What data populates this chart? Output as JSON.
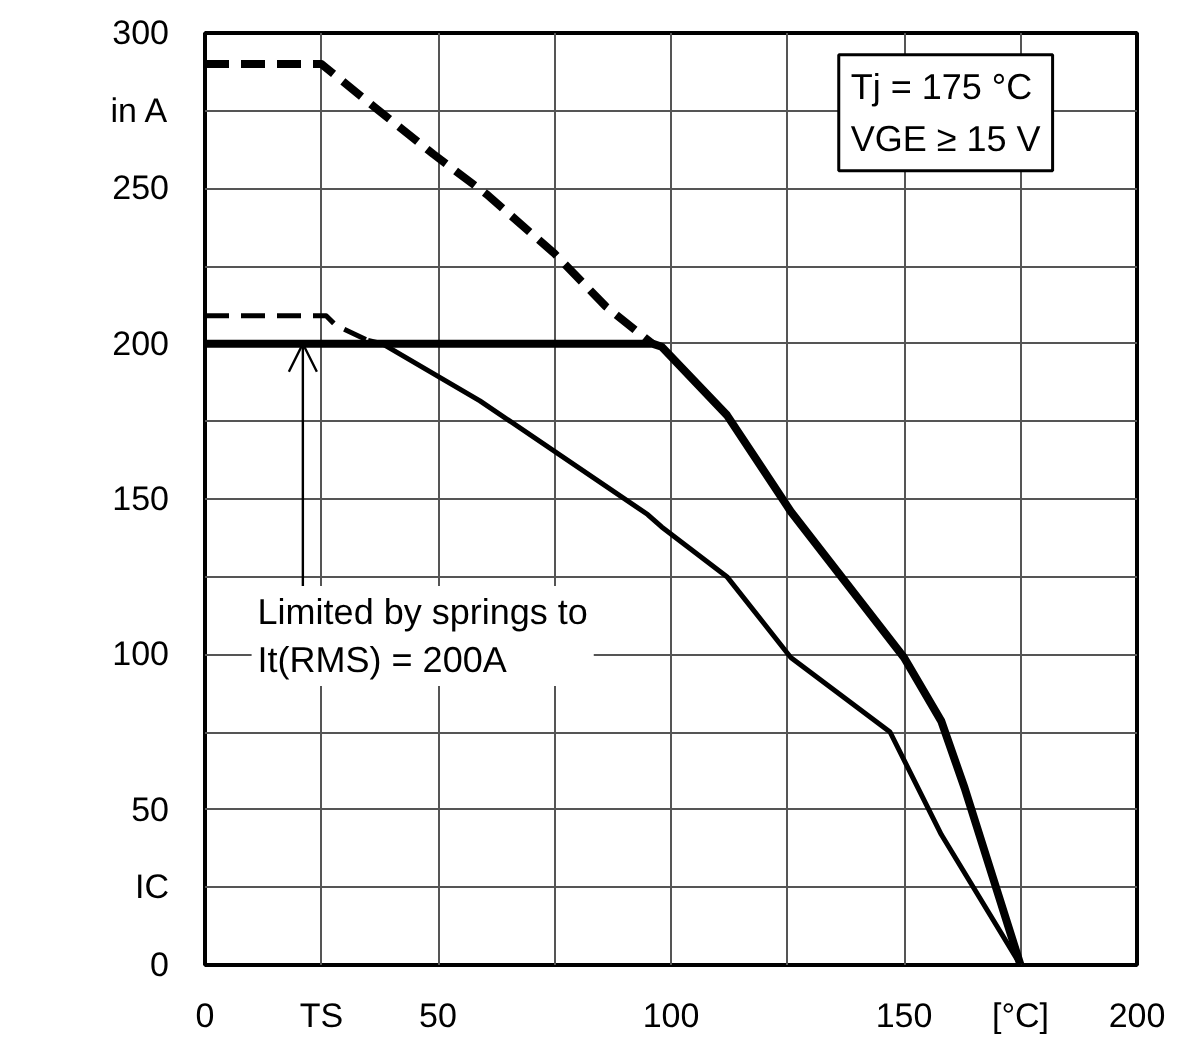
{
  "chart_data": {
    "type": "line",
    "xlim": [
      0,
      200
    ],
    "ylim": [
      0,
      300
    ],
    "xticks": [
      0,
      {
        "value": 25,
        "label": "TS"
      },
      50,
      {
        "value": 75,
        "label": null
      },
      100,
      {
        "value": 125,
        "label": null
      },
      150,
      {
        "value": 175,
        "label": "[°C]"
      },
      200
    ],
    "yticks": [
      0,
      {
        "value": 25,
        "label": "IC"
      },
      50,
      {
        "value": 75,
        "label": null
      },
      100,
      {
        "value": 125,
        "label": null
      },
      150,
      {
        "value": 175,
        "label": null
      },
      200,
      {
        "value": 225,
        "label": null
      },
      250,
      {
        "value": 275,
        "label": "in A"
      },
      300
    ],
    "grid": true,
    "series": [
      {
        "color": "#000000",
        "line_style": "dashed",
        "x": [
          0,
          25,
          36.5,
          49,
          60.5,
          75,
          86,
          96
        ],
        "values": [
          290,
          290,
          276,
          261,
          248,
          229,
          212,
          200
        ]
      },
      {
        "color": "#000000",
        "line_style": "solid",
        "x": [
          0,
          96,
          98,
          112,
          125.7,
          150,
          158,
          163,
          175
        ],
        "values": [
          200,
          200,
          199,
          177,
          146,
          99,
          78.5,
          57,
          0
        ]
      },
      {
        "color": "#000000",
        "line_style": "dashed",
        "x": [
          0,
          26,
          28,
          35
        ],
        "values": [
          209,
          209,
          206,
          201
        ]
      },
      {
        "color": "#000000",
        "line_style": "solid",
        "x": [
          35,
          38,
          59,
          95,
          98,
          112,
          125.7,
          147,
          158,
          175
        ],
        "values": [
          201,
          200,
          181.6,
          145,
          141,
          125,
          99,
          75,
          42,
          0
        ]
      }
    ],
    "annotations": [
      "Tj = 175 °C\nVGE ≥ 15 V",
      {
        "text": "Limited by springs to\nIt(RMS) = 200A",
        "x": 21,
        "y": 200
      }
    ]
  }
}
